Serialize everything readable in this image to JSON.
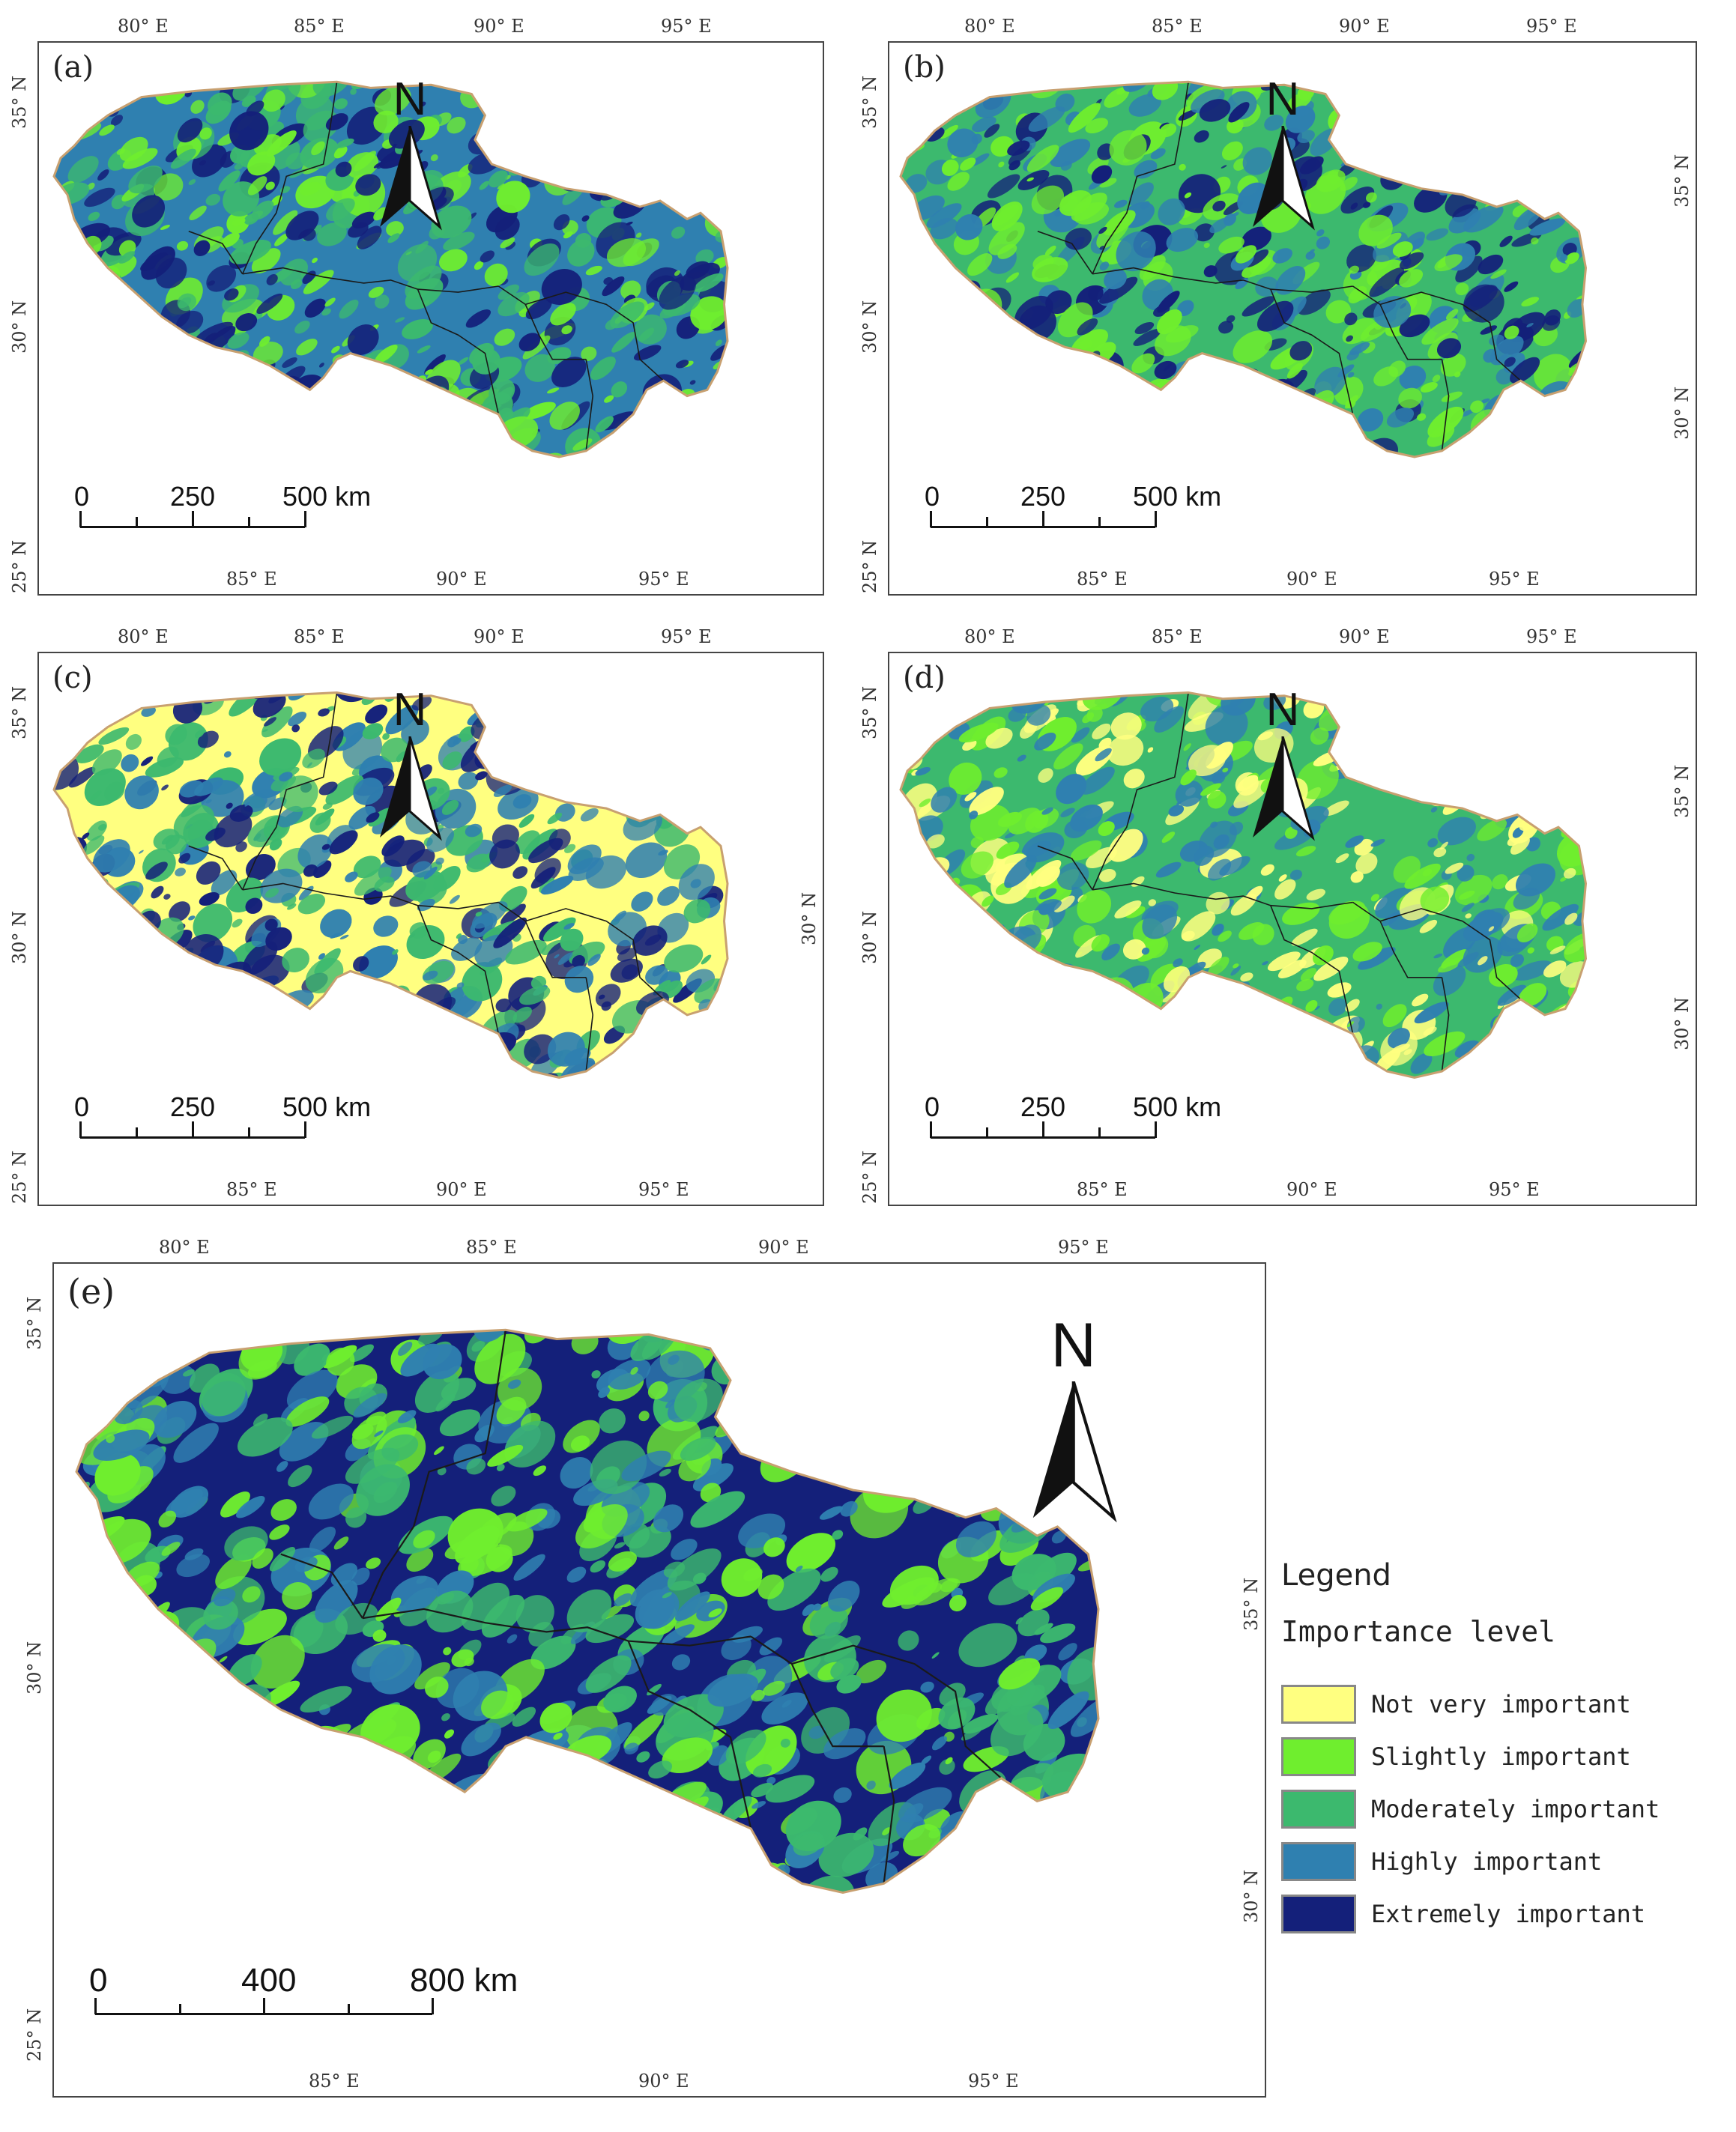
{
  "palette": {
    "not_very": "#ffff80",
    "slightly": "#6fee2e",
    "moderately": "#3cb96e",
    "highly": "#2f80b0",
    "extremely": "#14207a",
    "border": "#c8a070",
    "boundary": "#1a1a1a"
  },
  "panels": [
    {
      "id": "a",
      "label": "(a)",
      "top_lon": [
        "80° E",
        "85° E",
        "90° E",
        "95° E"
      ],
      "bottom_lon": [
        "85° E",
        "90° E",
        "95° E"
      ],
      "left_lat": [
        "35° N",
        "30° N",
        "25° N"
      ],
      "right_lat": [],
      "scale": {
        "ticks": [
          "0",
          "250",
          "500 km"
        ]
      },
      "north": "N",
      "classes": [
        "highly",
        "slightly",
        "moderately",
        "extremely"
      ]
    },
    {
      "id": "b",
      "label": "(b)",
      "top_lon": [
        "80° E",
        "85° E",
        "90° E",
        "95° E"
      ],
      "bottom_lon": [
        "85° E",
        "90° E",
        "95° E"
      ],
      "left_lat": [
        "35° N",
        "30° N",
        "25° N"
      ],
      "right_lat": [
        "35° N",
        "30° N"
      ],
      "scale": {
        "ticks": [
          "0",
          "250",
          "500 km"
        ]
      },
      "north": "N",
      "classes": [
        "moderately",
        "highly",
        "slightly",
        "extremely"
      ]
    },
    {
      "id": "c",
      "label": "(c)",
      "top_lon": [
        "80° E",
        "85° E",
        "90° E",
        "95° E"
      ],
      "bottom_lon": [
        "85° E",
        "90° E",
        "95° E"
      ],
      "left_lat": [
        "35° N",
        "30° N",
        "25° N"
      ],
      "right_lat": [
        "30° N"
      ],
      "scale": {
        "ticks": [
          "0",
          "250",
          "500 km"
        ]
      },
      "north": "N",
      "classes": [
        "not_very",
        "moderately",
        "highly",
        "extremely"
      ]
    },
    {
      "id": "d",
      "label": "(d)",
      "top_lon": [
        "80° E",
        "85° E",
        "90° E",
        "95° E"
      ],
      "bottom_lon": [
        "85° E",
        "90° E",
        "95° E"
      ],
      "left_lat": [
        "35° N",
        "30° N",
        "25° N"
      ],
      "right_lat": [
        "35° N",
        "30° N"
      ],
      "scale": {
        "ticks": [
          "0",
          "250",
          "500 km"
        ]
      },
      "north": "N",
      "classes": [
        "moderately",
        "highly",
        "slightly",
        "not_very"
      ]
    },
    {
      "id": "e",
      "label": "(e)",
      "top_lon": [
        "80° E",
        "85° E",
        "90° E",
        "95° E"
      ],
      "bottom_lon": [
        "85° E",
        "90° E",
        "95° E"
      ],
      "left_lat": [
        "35° N",
        "30° N",
        "25° N"
      ],
      "right_lat": [
        "35° N",
        "30° N"
      ],
      "scale": {
        "ticks": [
          "0",
          "400",
          "800 km"
        ]
      },
      "north": "N",
      "classes": [
        "extremely",
        "highly",
        "moderately",
        "slightly"
      ]
    }
  ],
  "legend": {
    "title": "Legend",
    "subtitle": "Importance level",
    "items": [
      {
        "label": "Not very important",
        "color": "#ffff80"
      },
      {
        "label": "Slightly important",
        "color": "#6fee2e"
      },
      {
        "label": "Moderately important",
        "color": "#3cb96e"
      },
      {
        "label": "Highly important",
        "color": "#2f80b0"
      },
      {
        "label": "Extremely important",
        "color": "#14207a"
      }
    ]
  }
}
